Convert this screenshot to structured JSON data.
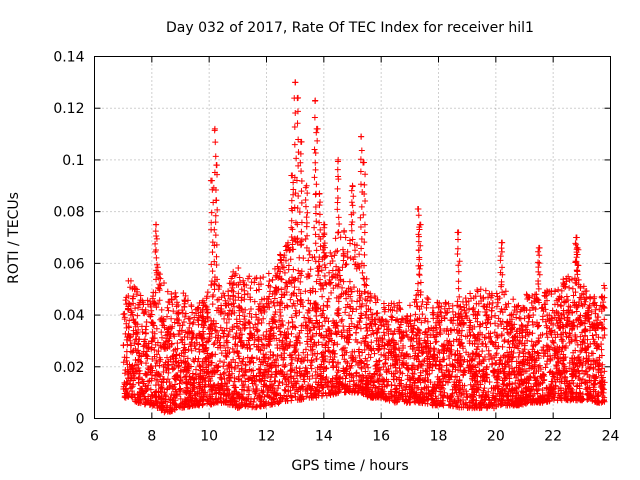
{
  "chart_data": {
    "type": "scatter",
    "title": "Day 032 of 2017, Rate Of TEC Index for receiver hil1",
    "xlabel": "GPS time / hours",
    "ylabel": "ROTI / TECUs",
    "xlim": [
      6,
      24
    ],
    "ylim": [
      0,
      0.14
    ],
    "xticks": [
      "6",
      "8",
      "10",
      "12",
      "14",
      "16",
      "18",
      "20",
      "22",
      "24"
    ],
    "yticks": [
      "0",
      "0.02",
      "0.04",
      "0.06",
      "0.08",
      "0.1",
      "0.12",
      "0.14"
    ],
    "grid": true,
    "marker": "+",
    "color": "#ff0000",
    "x_range_of_data": [
      7.0,
      23.8
    ],
    "envelope": {
      "x": [
        7.0,
        7.2,
        7.5,
        8.0,
        8.2,
        8.5,
        9.0,
        9.5,
        10.0,
        10.2,
        10.5,
        11.0,
        11.5,
        12.0,
        12.5,
        12.9,
        13.1,
        13.5,
        13.8,
        14.2,
        14.6,
        15.0,
        15.3,
        15.6,
        16.0,
        16.5,
        17.0,
        17.4,
        17.8,
        18.4,
        18.8,
        19.2,
        19.6,
        20.0,
        20.3,
        20.8,
        21.2,
        21.6,
        22.0,
        22.4,
        22.8,
        23.2,
        23.6,
        23.8
      ],
      "lower": [
        0.008,
        0.008,
        0.006,
        0.005,
        0.004,
        0.002,
        0.004,
        0.005,
        0.005,
        0.006,
        0.006,
        0.004,
        0.004,
        0.005,
        0.006,
        0.007,
        0.007,
        0.008,
        0.008,
        0.009,
        0.01,
        0.01,
        0.01,
        0.008,
        0.008,
        0.006,
        0.006,
        0.006,
        0.005,
        0.005,
        0.004,
        0.004,
        0.004,
        0.004,
        0.005,
        0.005,
        0.006,
        0.006,
        0.007,
        0.007,
        0.007,
        0.007,
        0.006,
        0.006
      ],
      "upper": [
        0.04,
        0.055,
        0.05,
        0.045,
        0.06,
        0.05,
        0.05,
        0.045,
        0.05,
        0.055,
        0.05,
        0.06,
        0.055,
        0.055,
        0.065,
        0.07,
        0.07,
        0.065,
        0.06,
        0.065,
        0.075,
        0.07,
        0.065,
        0.05,
        0.045,
        0.045,
        0.045,
        0.05,
        0.045,
        0.045,
        0.045,
        0.05,
        0.05,
        0.05,
        0.05,
        0.045,
        0.05,
        0.05,
        0.05,
        0.055,
        0.055,
        0.05,
        0.045,
        0.055
      ]
    },
    "spikes": [
      {
        "x": 8.15,
        "y": 0.075
      },
      {
        "x": 10.1,
        "y": 0.092
      },
      {
        "x": 10.2,
        "y": 0.112
      },
      {
        "x": 10.25,
        "y": 0.098
      },
      {
        "x": 12.9,
        "y": 0.094
      },
      {
        "x": 13.0,
        "y": 0.13
      },
      {
        "x": 13.1,
        "y": 0.124
      },
      {
        "x": 13.2,
        "y": 0.107
      },
      {
        "x": 13.4,
        "y": 0.09
      },
      {
        "x": 13.7,
        "y": 0.123
      },
      {
        "x": 13.75,
        "y": 0.112
      },
      {
        "x": 13.85,
        "y": 0.087
      },
      {
        "x": 14.0,
        "y": 0.075
      },
      {
        "x": 14.5,
        "y": 0.1
      },
      {
        "x": 15.0,
        "y": 0.09
      },
      {
        "x": 15.3,
        "y": 0.109
      },
      {
        "x": 15.4,
        "y": 0.099
      },
      {
        "x": 17.3,
        "y": 0.081
      },
      {
        "x": 17.35,
        "y": 0.075
      },
      {
        "x": 18.7,
        "y": 0.072
      },
      {
        "x": 20.2,
        "y": 0.068
      },
      {
        "x": 21.5,
        "y": 0.066
      },
      {
        "x": 22.8,
        "y": 0.07
      },
      {
        "x": 22.85,
        "y": 0.066
      }
    ]
  }
}
